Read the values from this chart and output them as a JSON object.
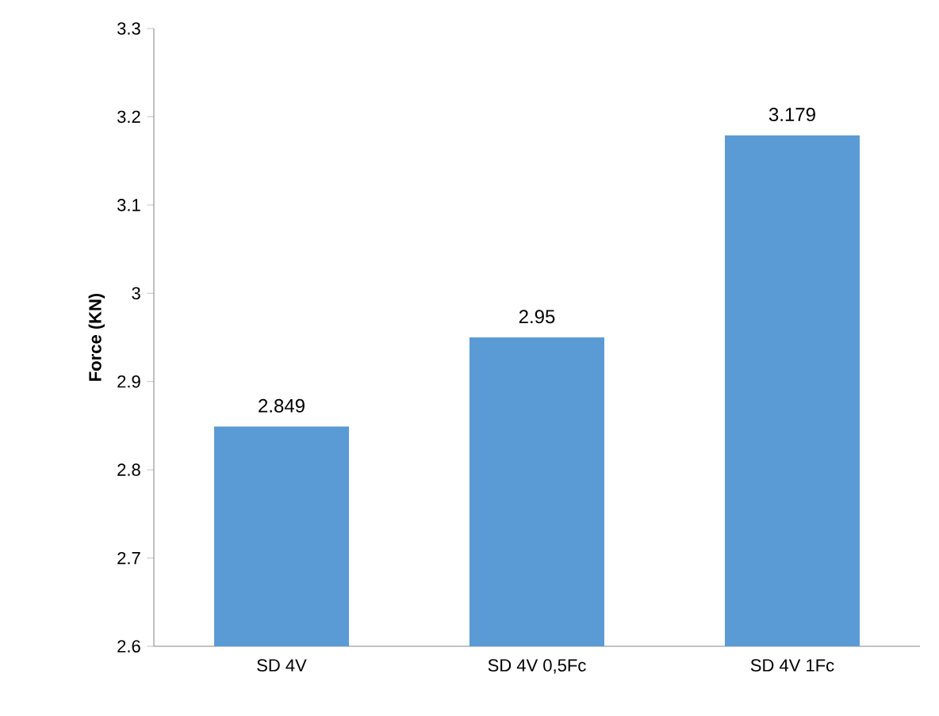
{
  "chart_data": {
    "type": "bar",
    "ylabel": "Force (KN)",
    "categories": [
      "SD 4V",
      "SD 4V 0,5Fc",
      "SD 4V 1Fc"
    ],
    "values": [
      2.849,
      2.95,
      3.179
    ],
    "color": "#5b9bd5",
    "ylim": [
      2.6,
      3.3
    ],
    "yticks": [
      2.6,
      2.7,
      2.8,
      2.9,
      3,
      3.1,
      3.2,
      3.3
    ],
    "data_labels": true,
    "grid": false
  }
}
